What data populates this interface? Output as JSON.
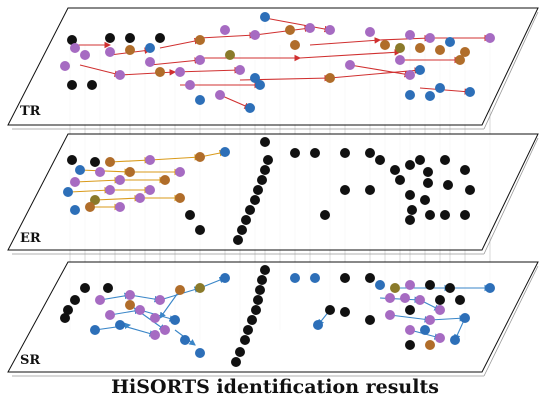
{
  "caption": "HiSORTS identification results",
  "layers": [
    {
      "id": "tr",
      "label": "TR"
    },
    {
      "id": "er",
      "label": "ER"
    },
    {
      "id": "sr",
      "label": "SR"
    }
  ],
  "colors": {
    "black_node": "#111111",
    "blue_node": "#2d6fb8",
    "purple_node": "#a66bc2",
    "brown_node": "#b06d2a",
    "olive_node": "#8a7a2a",
    "red_edge": "#d03030",
    "orange_edge": "#d99a1a",
    "blue_edge": "#3a86c8",
    "connector": "#c8c8c8",
    "plane_stroke": "#111111"
  }
}
